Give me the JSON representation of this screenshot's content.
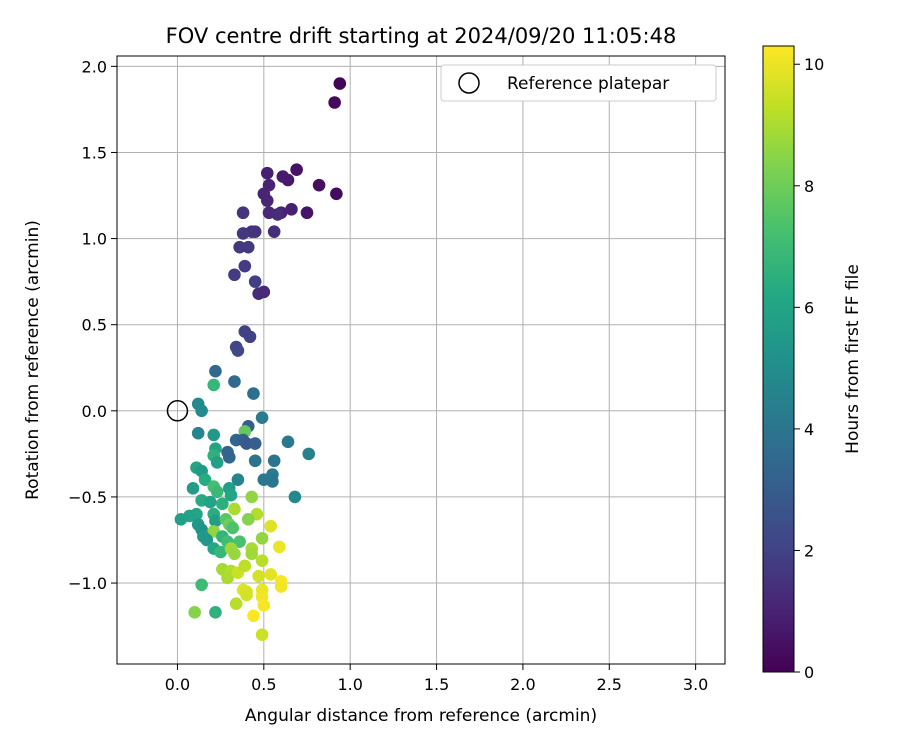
{
  "chart_data": {
    "type": "scatter",
    "title": "FOV centre drift starting at 2024/09/20 11:05:48",
    "xlabel": "Angular distance from reference (arcmin)",
    "ylabel": "Rotation from reference (arcmin)",
    "xlim": [
      -0.35,
      3.17
    ],
    "ylim": [
      -1.47,
      2.06
    ],
    "x_ticks": [
      0.0,
      0.5,
      1.0,
      1.5,
      2.0,
      2.5,
      3.0
    ],
    "x_tick_labels": [
      "0.0",
      "0.5",
      "1.0",
      "1.5",
      "2.0",
      "2.5",
      "3.0"
    ],
    "y_ticks": [
      -1.0,
      -0.5,
      0.0,
      0.5,
      1.0,
      1.5,
      2.0
    ],
    "y_tick_labels": [
      "−1.0",
      "−0.5",
      "0.0",
      "0.5",
      "1.0",
      "1.5",
      "2.0"
    ],
    "grid": true,
    "legend": {
      "position": "upper-right",
      "entries": [
        {
          "label": "Reference platepar",
          "marker": "open-circle"
        }
      ]
    },
    "reference_point": {
      "x": 0.0,
      "y": 0.0
    },
    "colormap": "viridis",
    "colorbar": {
      "label": "Hours from first FF file",
      "range": [
        0,
        10.3
      ],
      "ticks": [
        0,
        2,
        4,
        6,
        8,
        10
      ],
      "tick_labels": [
        "0",
        "2",
        "4",
        "6",
        "8",
        "10"
      ]
    },
    "points": [
      {
        "x": 0.94,
        "y": 1.9,
        "hours": 0.1
      },
      {
        "x": 0.91,
        "y": 1.79,
        "hours": 0.2
      },
      {
        "x": 0.92,
        "y": 1.26,
        "hours": 0.3
      },
      {
        "x": 0.82,
        "y": 1.31,
        "hours": 0.4
      },
      {
        "x": 0.69,
        "y": 1.4,
        "hours": 0.5
      },
      {
        "x": 0.75,
        "y": 1.15,
        "hours": 0.6
      },
      {
        "x": 0.64,
        "y": 1.34,
        "hours": 0.7
      },
      {
        "x": 0.61,
        "y": 1.36,
        "hours": 0.8
      },
      {
        "x": 0.66,
        "y": 1.17,
        "hours": 0.9
      },
      {
        "x": 0.6,
        "y": 1.15,
        "hours": 1.0
      },
      {
        "x": 0.52,
        "y": 1.38,
        "hours": 0.9
      },
      {
        "x": 0.53,
        "y": 1.31,
        "hours": 1.0
      },
      {
        "x": 0.5,
        "y": 1.26,
        "hours": 1.1
      },
      {
        "x": 0.52,
        "y": 1.22,
        "hours": 1.1
      },
      {
        "x": 0.53,
        "y": 1.15,
        "hours": 1.2
      },
      {
        "x": 0.58,
        "y": 1.14,
        "hours": 1.3
      },
      {
        "x": 0.56,
        "y": 1.04,
        "hours": 1.4
      },
      {
        "x": 0.45,
        "y": 1.04,
        "hours": 1.5
      },
      {
        "x": 0.43,
        "y": 1.04,
        "hours": 1.5
      },
      {
        "x": 0.38,
        "y": 1.15,
        "hours": 1.5
      },
      {
        "x": 0.38,
        "y": 1.03,
        "hours": 1.6
      },
      {
        "x": 0.36,
        "y": 0.95,
        "hours": 1.7
      },
      {
        "x": 0.41,
        "y": 0.95,
        "hours": 1.7
      },
      {
        "x": 0.33,
        "y": 0.79,
        "hours": 1.8
      },
      {
        "x": 0.39,
        "y": 0.84,
        "hours": 1.8
      },
      {
        "x": 0.45,
        "y": 0.75,
        "hours": 1.9
      },
      {
        "x": 0.47,
        "y": 0.68,
        "hours": 1.3
      },
      {
        "x": 0.5,
        "y": 0.69,
        "hours": 1.2
      },
      {
        "x": 0.39,
        "y": 0.46,
        "hours": 2.0
      },
      {
        "x": 0.42,
        "y": 0.43,
        "hours": 2.0
      },
      {
        "x": 0.34,
        "y": 0.37,
        "hours": 2.1
      },
      {
        "x": 0.35,
        "y": 0.35,
        "hours": 2.2
      },
      {
        "x": 0.22,
        "y": 0.23,
        "hours": 3.5
      },
      {
        "x": 0.33,
        "y": 0.17,
        "hours": 3.6
      },
      {
        "x": 0.44,
        "y": 0.1,
        "hours": 3.8
      },
      {
        "x": 0.21,
        "y": 0.15,
        "hours": 6.8
      },
      {
        "x": 0.12,
        "y": 0.04,
        "hours": 4.8
      },
      {
        "x": 0.14,
        "y": 0.0,
        "hours": 4.9
      },
      {
        "x": 0.49,
        "y": -0.04,
        "hours": 4.3
      },
      {
        "x": 0.41,
        "y": -0.09,
        "hours": 3.0
      },
      {
        "x": 0.39,
        "y": -0.12,
        "hours": 7.8
      },
      {
        "x": 0.12,
        "y": -0.13,
        "hours": 4.6
      },
      {
        "x": 0.21,
        "y": -0.14,
        "hours": 5.5
      },
      {
        "x": 0.34,
        "y": -0.17,
        "hours": 3.3
      },
      {
        "x": 0.38,
        "y": -0.17,
        "hours": 3.1
      },
      {
        "x": 0.4,
        "y": -0.19,
        "hours": 2.9
      },
      {
        "x": 0.45,
        "y": -0.19,
        "hours": 3.0
      },
      {
        "x": 0.64,
        "y": -0.18,
        "hours": 4.2
      },
      {
        "x": 0.76,
        "y": -0.25,
        "hours": 4.5
      },
      {
        "x": 0.29,
        "y": -0.24,
        "hours": 3.4
      },
      {
        "x": 0.3,
        "y": -0.27,
        "hours": 3.3
      },
      {
        "x": 0.22,
        "y": -0.22,
        "hours": 6.0
      },
      {
        "x": 0.21,
        "y": -0.26,
        "hours": 6.6
      },
      {
        "x": 0.23,
        "y": -0.3,
        "hours": 5.8
      },
      {
        "x": 0.45,
        "y": -0.29,
        "hours": 3.9
      },
      {
        "x": 0.56,
        "y": -0.29,
        "hours": 4.0
      },
      {
        "x": 0.55,
        "y": -0.37,
        "hours": 4.2
      },
      {
        "x": 0.5,
        "y": -0.4,
        "hours": 4.1
      },
      {
        "x": 0.55,
        "y": -0.41,
        "hours": 4.0
      },
      {
        "x": 0.11,
        "y": -0.33,
        "hours": 6.0
      },
      {
        "x": 0.14,
        "y": -0.35,
        "hours": 5.6
      },
      {
        "x": 0.16,
        "y": -0.4,
        "hours": 6.3
      },
      {
        "x": 0.35,
        "y": -0.4,
        "hours": 4.6
      },
      {
        "x": 0.68,
        "y": -0.5,
        "hours": 4.8
      },
      {
        "x": 0.09,
        "y": -0.45,
        "hours": 5.7
      },
      {
        "x": 0.21,
        "y": -0.44,
        "hours": 7.2
      },
      {
        "x": 0.23,
        "y": -0.47,
        "hours": 6.9
      },
      {
        "x": 0.3,
        "y": -0.45,
        "hours": 5.8
      },
      {
        "x": 0.31,
        "y": -0.49,
        "hours": 6.1
      },
      {
        "x": 0.43,
        "y": -0.5,
        "hours": 8.6
      },
      {
        "x": 0.14,
        "y": -0.52,
        "hours": 6.3
      },
      {
        "x": 0.19,
        "y": -0.53,
        "hours": 5.9
      },
      {
        "x": 0.26,
        "y": -0.54,
        "hours": 6.5
      },
      {
        "x": 0.33,
        "y": -0.57,
        "hours": 9.0
      },
      {
        "x": 0.46,
        "y": -0.6,
        "hours": 9.1
      },
      {
        "x": 0.41,
        "y": -0.63,
        "hours": 8.4
      },
      {
        "x": 0.21,
        "y": -0.6,
        "hours": 6.4
      },
      {
        "x": 0.11,
        "y": -0.6,
        "hours": 6.1
      },
      {
        "x": 0.07,
        "y": -0.61,
        "hours": 5.9
      },
      {
        "x": 0.02,
        "y": -0.63,
        "hours": 5.8
      },
      {
        "x": 0.12,
        "y": -0.66,
        "hours": 5.5
      },
      {
        "x": 0.14,
        "y": -0.69,
        "hours": 5.2
      },
      {
        "x": 0.22,
        "y": -0.64,
        "hours": 5.7
      },
      {
        "x": 0.28,
        "y": -0.63,
        "hours": 7.6
      },
      {
        "x": 0.3,
        "y": -0.66,
        "hours": 8.0
      },
      {
        "x": 0.32,
        "y": -0.68,
        "hours": 7.4
      },
      {
        "x": 0.54,
        "y": -0.67,
        "hours": 9.8
      },
      {
        "x": 0.21,
        "y": -0.7,
        "hours": 8.6
      },
      {
        "x": 0.15,
        "y": -0.73,
        "hours": 5.6
      },
      {
        "x": 0.17,
        "y": -0.75,
        "hours": 5.4
      },
      {
        "x": 0.26,
        "y": -0.73,
        "hours": 6.7
      },
      {
        "x": 0.29,
        "y": -0.76,
        "hours": 7.1
      },
      {
        "x": 0.36,
        "y": -0.76,
        "hours": 7.3
      },
      {
        "x": 0.49,
        "y": -0.74,
        "hours": 8.6
      },
      {
        "x": 0.59,
        "y": -0.79,
        "hours": 10.0
      },
      {
        "x": 0.21,
        "y": -0.8,
        "hours": 6.2
      },
      {
        "x": 0.25,
        "y": -0.82,
        "hours": 6.8
      },
      {
        "x": 0.31,
        "y": -0.8,
        "hours": 8.8
      },
      {
        "x": 0.33,
        "y": -0.83,
        "hours": 8.7
      },
      {
        "x": 0.43,
        "y": -0.8,
        "hours": 9.0
      },
      {
        "x": 0.43,
        "y": -0.83,
        "hours": 8.8
      },
      {
        "x": 0.49,
        "y": -0.87,
        "hours": 9.2
      },
      {
        "x": 0.26,
        "y": -0.92,
        "hours": 8.9
      },
      {
        "x": 0.31,
        "y": -0.93,
        "hours": 9.1
      },
      {
        "x": 0.29,
        "y": -0.97,
        "hours": 9.0
      },
      {
        "x": 0.35,
        "y": -0.94,
        "hours": 9.5
      },
      {
        "x": 0.39,
        "y": -0.9,
        "hours": 9.3
      },
      {
        "x": 0.47,
        "y": -0.96,
        "hours": 9.6
      },
      {
        "x": 0.54,
        "y": -0.95,
        "hours": 9.9
      },
      {
        "x": 0.6,
        "y": -0.99,
        "hours": 10.2
      },
      {
        "x": 0.6,
        "y": -1.02,
        "hours": 10.1
      },
      {
        "x": 0.38,
        "y": -1.04,
        "hours": 9.8
      },
      {
        "x": 0.4,
        "y": -1.05,
        "hours": 9.7
      },
      {
        "x": 0.4,
        "y": -1.07,
        "hours": 9.6
      },
      {
        "x": 0.49,
        "y": -1.04,
        "hours": 10.0
      },
      {
        "x": 0.49,
        "y": -1.08,
        "hours": 10.1
      },
      {
        "x": 0.34,
        "y": -1.12,
        "hours": 9.2
      },
      {
        "x": 0.5,
        "y": -1.13,
        "hours": 10.2
      },
      {
        "x": 0.14,
        "y": -1.01,
        "hours": 7.0
      },
      {
        "x": 0.1,
        "y": -1.17,
        "hours": 8.4
      },
      {
        "x": 0.22,
        "y": -1.17,
        "hours": 6.6
      },
      {
        "x": 0.44,
        "y": -1.19,
        "hours": 10.3
      },
      {
        "x": 0.49,
        "y": -1.3,
        "hours": 9.5
      }
    ]
  }
}
